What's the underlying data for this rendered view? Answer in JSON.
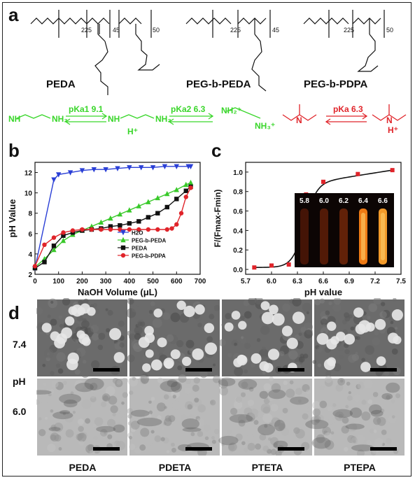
{
  "panel_a": {
    "letter": "a",
    "polymer_labels": [
      "PEDA",
      "PEG-b-PEDA",
      "PEG-b-PDPA"
    ],
    "repeat_units": {
      "peg": "225",
      "peda": "45",
      "pdpa": "50"
    },
    "pka_labels": {
      "pka1": "pKa1 9.1",
      "pka2": "pKa2 6.3",
      "pka": "pKa 6.3"
    },
    "colors": {
      "amine": "#39d62a",
      "dpa": "#e0242a"
    }
  },
  "panel_b": {
    "letter": "b",
    "chart_data": {
      "type": "line",
      "xlabel": "NaOH Volume (μL)",
      "ylabel": "pH Value",
      "xlim": [
        0,
        700
      ],
      "ylim": [
        2,
        13
      ],
      "xticks": [
        0,
        100,
        200,
        300,
        400,
        500,
        600,
        700
      ],
      "yticks": [
        2,
        4,
        6,
        8,
        10,
        12
      ],
      "legend_position": "lower-right",
      "series": [
        {
          "name": "H2O",
          "color": "#2a3fd6",
          "marker": "triangle-down",
          "x": [
            0,
            80,
            100,
            150,
            200,
            250,
            300,
            350,
            400,
            450,
            500,
            550,
            600,
            650,
            660
          ],
          "y": [
            2.6,
            11.3,
            11.8,
            12.0,
            12.2,
            12.3,
            12.3,
            12.4,
            12.5,
            12.5,
            12.5,
            12.6,
            12.6,
            12.6,
            12.6
          ]
        },
        {
          "name": "PEG-b-PEDA",
          "color": "#39c92a",
          "marker": "triangle-up",
          "x": [
            0,
            40,
            80,
            120,
            160,
            200,
            240,
            280,
            320,
            360,
            400,
            440,
            480,
            520,
            560,
            600,
            640,
            660
          ],
          "y": [
            2.7,
            3.5,
            4.4,
            5.3,
            5.9,
            6.3,
            6.7,
            7.1,
            7.5,
            7.9,
            8.3,
            8.7,
            9.1,
            9.5,
            9.9,
            10.3,
            10.8,
            11.0
          ]
        },
        {
          "name": "PEDA",
          "color": "#111111",
          "marker": "square",
          "x": [
            0,
            40,
            80,
            120,
            160,
            200,
            240,
            280,
            320,
            360,
            400,
            440,
            480,
            520,
            560,
            600,
            640,
            660
          ],
          "y": [
            2.6,
            3.2,
            4.8,
            5.8,
            6.1,
            6.3,
            6.4,
            6.5,
            6.7,
            6.8,
            7.0,
            7.2,
            7.6,
            8.0,
            8.6,
            9.4,
            10.2,
            10.6
          ]
        },
        {
          "name": "PEG-b-PDPA",
          "color": "#e0242a",
          "marker": "circle",
          "x": [
            0,
            40,
            80,
            120,
            160,
            200,
            240,
            280,
            320,
            360,
            400,
            440,
            480,
            520,
            560,
            580,
            600,
            620,
            640,
            660
          ],
          "y": [
            2.8,
            4.9,
            5.6,
            6.1,
            6.3,
            6.4,
            6.4,
            6.4,
            6.4,
            6.4,
            6.4,
            6.4,
            6.4,
            6.4,
            6.4,
            6.5,
            6.9,
            8.0,
            9.6,
            10.5
          ]
        }
      ]
    }
  },
  "panel_c": {
    "letter": "c",
    "chart_data": {
      "type": "scatter",
      "xlabel": "pH value",
      "ylabel": "F/(Fmax-Fmin)",
      "xlim": [
        5.7,
        7.5
      ],
      "ylim": [
        -0.05,
        1.1
      ],
      "xticks": [
        "5.7",
        "6.0",
        "6.3",
        "6.6",
        "6.9",
        "7.2",
        "7.5"
      ],
      "yticks": [
        "0.0",
        "0.2",
        "0.4",
        "0.6",
        "0.8",
        "1.0"
      ],
      "points_x": [
        5.8,
        6.0,
        6.2,
        6.4,
        6.6,
        7.0,
        7.4
      ],
      "points_y": [
        0.02,
        0.04,
        0.05,
        0.77,
        0.9,
        0.98,
        1.02
      ],
      "inset_labels": [
        "5.8",
        "6.0",
        "6.2",
        "6.4",
        "6.6"
      ]
    }
  },
  "panel_d": {
    "letter": "d",
    "row_labels": [
      "7.4",
      "pH",
      "6.0"
    ],
    "column_labels": [
      "PEDA",
      "PDETA",
      "PTETA",
      "PTEPA"
    ]
  }
}
